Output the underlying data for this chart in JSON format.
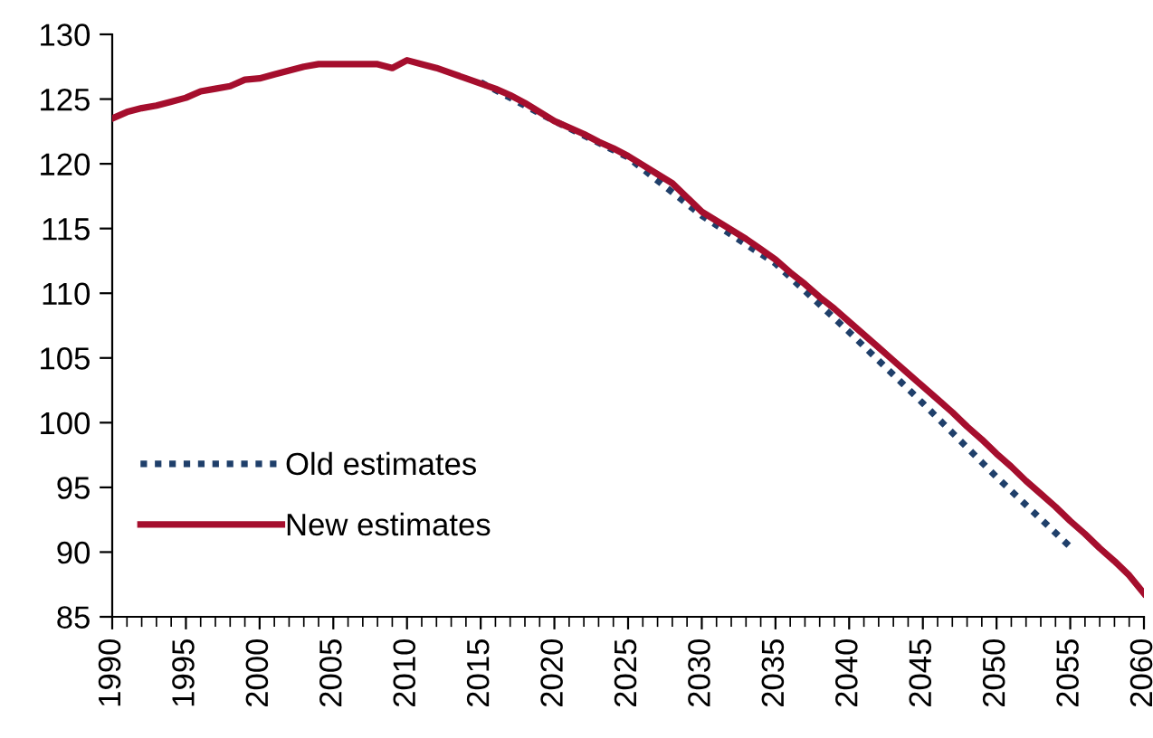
{
  "chart_data": {
    "type": "line",
    "xlim": [
      1990,
      2060
    ],
    "xticks": [
      1990,
      1995,
      2000,
      2005,
      2010,
      2015,
      2020,
      2025,
      2030,
      2035,
      2040,
      2045,
      2050,
      2055,
      2060
    ],
    "ylim": [
      85,
      130
    ],
    "yticks": [
      85,
      90,
      95,
      100,
      105,
      110,
      115,
      120,
      125,
      130
    ],
    "grid": false,
    "legend": "bottom left",
    "marker": "none",
    "series": [
      {
        "name": "Old estimates",
        "color": "#1f3f6a",
        "line_style": "dotted",
        "x": [
          2015,
          2020,
          2025,
          2030,
          2035,
          2040,
          2045,
          2050,
          2055
        ],
        "values": [
          126.3,
          123.3,
          120.5,
          116.0,
          112.3,
          107.0,
          101.5,
          95.8,
          90.4
        ]
      },
      {
        "name": "New estimates",
        "color": "#a50e2d",
        "line_style": "solid",
        "x": [
          1990,
          1991,
          1992,
          1993,
          1994,
          1995,
          1996,
          1997,
          1998,
          1999,
          2000,
          2001,
          2002,
          2003,
          2004,
          2005,
          2006,
          2007,
          2008,
          2009,
          2010,
          2011,
          2012,
          2013,
          2014,
          2015,
          2016,
          2017,
          2018,
          2019,
          2020,
          2021,
          2022,
          2023,
          2024,
          2025,
          2026,
          2027,
          2028,
          2029,
          2030,
          2031,
          2032,
          2033,
          2034,
          2035,
          2036,
          2037,
          2038,
          2039,
          2040,
          2041,
          2042,
          2043,
          2044,
          2045,
          2046,
          2047,
          2048,
          2049,
          2050,
          2051,
          2052,
          2053,
          2054,
          2055,
          2056,
          2057,
          2058,
          2059,
          2060
        ],
        "values": [
          123.5,
          124.0,
          124.3,
          124.5,
          124.8,
          125.1,
          125.6,
          125.8,
          126.0,
          126.5,
          126.6,
          126.9,
          127.2,
          127.5,
          127.7,
          127.7,
          127.7,
          127.7,
          127.7,
          127.4,
          128.0,
          127.7,
          127.4,
          127.0,
          126.6,
          126.2,
          125.8,
          125.3,
          124.7,
          124.0,
          123.3,
          122.8,
          122.3,
          121.7,
          121.2,
          120.6,
          119.9,
          119.2,
          118.5,
          117.4,
          116.3,
          115.6,
          114.9,
          114.2,
          113.4,
          112.6,
          111.6,
          110.7,
          109.7,
          108.8,
          107.8,
          106.8,
          105.8,
          104.8,
          103.8,
          102.8,
          101.8,
          100.8,
          99.7,
          98.7,
          97.6,
          96.6,
          95.5,
          94.5,
          93.5,
          92.4,
          91.4,
          90.3,
          89.3,
          88.2,
          86.8
        ]
      }
    ]
  }
}
